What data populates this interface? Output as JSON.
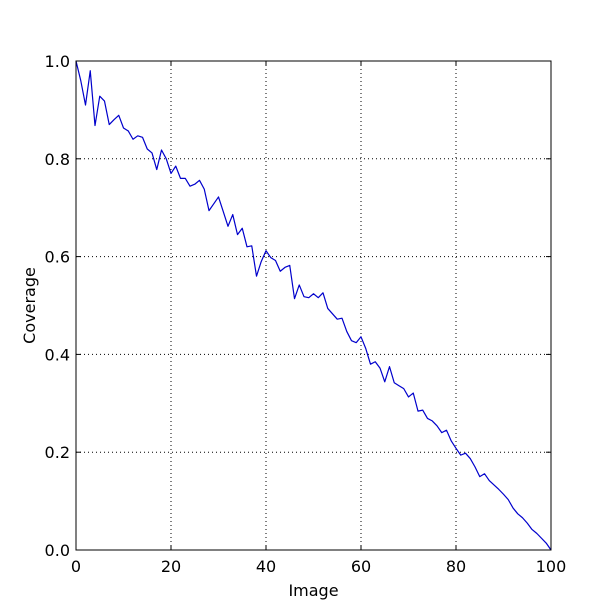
{
  "chart_data": {
    "type": "line",
    "title": "",
    "xlabel": "Image",
    "ylabel": "Coverage",
    "xlim": [
      0,
      100
    ],
    "ylim": [
      0.0,
      1.0
    ],
    "xticks": [
      "0",
      "20",
      "40",
      "60",
      "80",
      "100"
    ],
    "yticks": [
      "0.0",
      "0.2",
      "0.4",
      "0.6",
      "0.8",
      "1.0"
    ],
    "grid": true,
    "grid_style": "dotted",
    "line_color": "#0000cc",
    "series": [
      {
        "x": [
          0,
          1,
          2,
          3,
          4,
          5,
          6,
          7,
          8,
          9,
          10,
          11,
          12,
          13,
          14,
          15,
          16,
          17,
          18,
          19,
          20,
          21,
          22,
          23,
          24,
          25,
          26,
          27,
          28,
          29,
          30,
          31,
          32,
          33,
          34,
          35,
          36,
          37,
          38,
          39,
          40,
          41,
          42,
          43,
          44,
          45,
          46,
          47,
          48,
          49,
          50,
          51,
          52,
          53,
          54,
          55,
          56,
          57,
          58,
          59,
          60,
          61,
          62,
          63,
          64,
          65,
          66,
          67,
          68,
          69,
          70,
          71,
          72,
          73,
          74,
          75,
          76,
          77,
          78,
          79,
          80,
          81,
          82,
          83,
          84,
          85,
          86,
          87,
          88,
          89,
          90,
          91,
          92,
          93,
          94,
          95,
          96,
          97,
          98,
          99,
          100
        ],
        "y": [
          1.0,
          0.96,
          0.91,
          0.98,
          0.868,
          0.928,
          0.918,
          0.87,
          0.88,
          0.889,
          0.863,
          0.857,
          0.84,
          0.847,
          0.844,
          0.82,
          0.812,
          0.778,
          0.818,
          0.8,
          0.77,
          0.785,
          0.76,
          0.76,
          0.744,
          0.748,
          0.756,
          0.738,
          0.694,
          0.708,
          0.722,
          0.692,
          0.662,
          0.686,
          0.645,
          0.658,
          0.62,
          0.622,
          0.56,
          0.59,
          0.612,
          0.598,
          0.592,
          0.57,
          0.578,
          0.582,
          0.514,
          0.542,
          0.518,
          0.516,
          0.524,
          0.516,
          0.526,
          0.494,
          0.483,
          0.472,
          0.474,
          0.447,
          0.428,
          0.424,
          0.436,
          0.412,
          0.38,
          0.385,
          0.372,
          0.344,
          0.375,
          0.342,
          0.336,
          0.33,
          0.313,
          0.321,
          0.284,
          0.286,
          0.269,
          0.264,
          0.254,
          0.24,
          0.245,
          0.223,
          0.208,
          0.194,
          0.198,
          0.187,
          0.17,
          0.15,
          0.156,
          0.142,
          0.133,
          0.124,
          0.114,
          0.103,
          0.086,
          0.074,
          0.066,
          0.055,
          0.042,
          0.034,
          0.024,
          0.014,
          0.0
        ]
      }
    ]
  }
}
